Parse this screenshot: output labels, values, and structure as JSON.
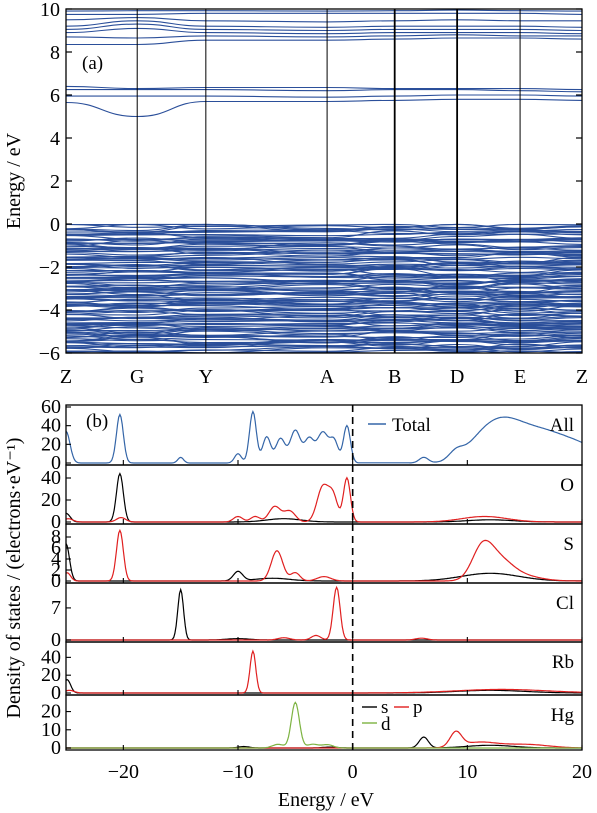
{
  "colors": {
    "band": "#2b4f9a",
    "total": "#3566a8",
    "s": "#000000",
    "p": "#e02020",
    "d": "#7db342",
    "axis": "#000000"
  },
  "chart_data": [
    {
      "type": "line",
      "panel_label": "(a)",
      "ylabel": "Energy / eV",
      "ylim": [
        -6,
        10
      ],
      "y_ticks": [
        "−6",
        "−4",
        "−2",
        "0",
        "2",
        "4",
        "6",
        "8",
        "10"
      ],
      "y_tick_values": [
        -6,
        -4,
        -2,
        0,
        2,
        4,
        6,
        8,
        10
      ],
      "k_path": [
        "Z",
        "G",
        "Y",
        "A",
        "B",
        "D",
        "E",
        "Z"
      ],
      "k_positions": [
        0,
        0.138,
        0.271,
        0.506,
        0.637,
        0.758,
        0.88,
        1.0
      ],
      "bands": {
        "conduction_low": [
          {
            "E": [
              5.65,
              5.0,
              5.7,
              5.7,
              5.75,
              5.8,
              5.8,
              5.75
            ],
            "name": "cb1"
          },
          {
            "E": [
              5.95,
              5.95,
              5.95,
              5.9,
              5.95,
              6.0,
              6.0,
              5.95
            ],
            "name": "cb2"
          },
          {
            "E": [
              6.25,
              6.25,
              6.25,
              6.2,
              6.25,
              6.25,
              6.2,
              6.15
            ],
            "name": "cb3"
          },
          {
            "E": [
              6.4,
              6.3,
              6.35,
              6.35,
              6.3,
              6.3,
              6.3,
              6.25
            ],
            "name": "cb4"
          }
        ],
        "conduction_high": [
          {
            "E": [
              8.35,
              8.35,
              8.55,
              8.55,
              8.6,
              8.65,
              8.65,
              8.6
            ]
          },
          {
            "E": [
              8.7,
              8.65,
              8.75,
              8.7,
              8.75,
              8.8,
              8.75,
              8.75
            ]
          },
          {
            "E": [
              8.9,
              9.1,
              8.9,
              8.85,
              8.9,
              8.9,
              8.9,
              8.85
            ]
          },
          {
            "E": [
              9.05,
              9.3,
              9.05,
              9.0,
              9.05,
              9.05,
              9.05,
              9.0
            ]
          },
          {
            "E": [
              9.2,
              9.45,
              9.2,
              9.15,
              9.2,
              9.2,
              9.2,
              9.15
            ]
          },
          {
            "E": [
              9.5,
              9.6,
              9.45,
              9.4,
              9.45,
              9.5,
              9.45,
              9.45
            ]
          },
          {
            "E": [
              9.75,
              9.75,
              9.8,
              9.8,
              9.8,
              9.8,
              9.8,
              9.75
            ]
          },
          {
            "E": [
              9.9,
              9.92,
              9.92,
              9.9,
              9.92,
              9.95,
              9.92,
              9.9
            ]
          }
        ],
        "valence_range": [
          -6,
          0
        ]
      }
    },
    {
      "type": "line",
      "panel_label": "(b)",
      "xlabel": "Energy / eV",
      "ylabel": "Density of states / (electrons·eV⁻¹)",
      "xlim": [
        -25,
        20
      ],
      "x_ticks": [
        "−20",
        "−10",
        "0",
        "10",
        "20"
      ],
      "x_tick_values": [
        -20,
        -10,
        0,
        10,
        20
      ],
      "fermi_level": 0,
      "legend_total": "Total",
      "legend_orbitals": [
        "s",
        "p",
        "d"
      ],
      "panels": [
        {
          "element": "All",
          "ylim": [
            0,
            60
          ],
          "y_ticks": [
            "0",
            "20",
            "40",
            "60"
          ],
          "y_tick_values": [
            0,
            20,
            40,
            60
          ],
          "series": [
            {
              "name": "Total",
              "color": "total",
              "peaks": [
                [
                  -25,
                  34,
                  0.35
                ],
                [
                  -20.3,
                  52,
                  0.3
                ],
                [
                  -15,
                  6,
                  0.25
                ],
                [
                  -10,
                  10,
                  0.3
                ],
                [
                  -8.7,
                  55,
                  0.3
                ],
                [
                  -7.5,
                  28,
                  0.35
                ],
                [
                  -6.3,
                  26,
                  0.4
                ],
                [
                  -5,
                  35,
                  0.45
                ],
                [
                  -3.8,
                  25,
                  0.4
                ],
                [
                  -2.6,
                  33,
                  0.5
                ],
                [
                  -1.6,
                  22,
                  0.35
                ],
                [
                  -0.5,
                  40,
                  0.3
                ],
                [
                  6.2,
                  6,
                  0.4
                ],
                [
                  9,
                  8,
                  0.6
                ],
                [
                  11.5,
                  25,
                  1.6
                ],
                [
                  13.5,
                  28,
                  1.6
                ],
                [
                  16,
                  20,
                  1.8
                ],
                [
                  19,
                  22,
                  2.5
                ]
              ]
            }
          ]
        },
        {
          "element": "O",
          "ylim": [
            0,
            50
          ],
          "y_ticks": [
            "0",
            "20",
            "40"
          ],
          "y_tick_values": [
            0,
            20,
            40
          ],
          "series": [
            {
              "name": "s",
              "color": "s",
              "peaks": [
                [
                  -25,
                  8,
                  0.35
                ],
                [
                  -20.3,
                  44,
                  0.3
                ],
                [
                  -6,
                  3,
                  1.5
                ],
                [
                  12,
                  2,
                  2
                ]
              ]
            },
            {
              "name": "p",
              "color": "p",
              "peaks": [
                [
                  -24.8,
                  3,
                  0.4
                ],
                [
                  -20.2,
                  4,
                  0.4
                ],
                [
                  -10,
                  5,
                  0.4
                ],
                [
                  -8.5,
                  5,
                  0.4
                ],
                [
                  -6.8,
                  14,
                  0.5
                ],
                [
                  -5.5,
                  10,
                  0.5
                ],
                [
                  -2.6,
                  32,
                  0.5
                ],
                [
                  -1.7,
                  22,
                  0.4
                ],
                [
                  -0.5,
                  40,
                  0.3
                ],
                [
                  11.5,
                  5,
                  2
                ]
              ]
            }
          ]
        },
        {
          "element": "S",
          "ylim": [
            0,
            10
          ],
          "y_ticks": [
            "0",
            "2",
            "4",
            "6",
            "8"
          ],
          "y_tick_values": [
            0,
            2,
            4,
            6,
            8
          ],
          "series": [
            {
              "name": "s",
              "color": "s",
              "peaks": [
                [
                  -25,
                  6.8,
                  0.3
                ],
                [
                  -10,
                  1.7,
                  0.4
                ],
                [
                  -7,
                  0.5,
                  1.5
                ],
                [
                  12,
                  1.4,
                  2.5
                ]
              ]
            },
            {
              "name": "p",
              "color": "p",
              "peaks": [
                [
                  -20.3,
                  9.2,
                  0.3
                ],
                [
                  -24.9,
                  1.5,
                  0.3
                ],
                [
                  -6.6,
                  5.5,
                  0.5
                ],
                [
                  -5,
                  1.5,
                  0.4
                ],
                [
                  -2.5,
                  0.8,
                  0.6
                ],
                [
                  11.3,
                  5.5,
                  0.9
                ],
                [
                  12.8,
                  3.5,
                  1.2
                ],
                [
                  15,
                  0.8,
                  1.5
                ]
              ]
            }
          ]
        },
        {
          "element": "Cl",
          "ylim": [
            0,
            12
          ],
          "y_ticks": [
            "0",
            "7"
          ],
          "y_tick_values": [
            0,
            7
          ],
          "series": [
            {
              "name": "s",
              "color": "s",
              "peaks": [
                [
                  -15,
                  11,
                  0.25
                ],
                [
                  -10,
                  0.3,
                  1
                ]
              ]
            },
            {
              "name": "p",
              "color": "p",
              "peaks": [
                [
                  -1.4,
                  11.5,
                  0.3
                ],
                [
                  -3.2,
                  1,
                  0.4
                ],
                [
                  -6,
                  0.5,
                  0.5
                ],
                [
                  6,
                  0.4,
                  0.5
                ]
              ]
            }
          ]
        },
        {
          "element": "Rb",
          "ylim": [
            0,
            55
          ],
          "y_ticks": [
            "0",
            "20",
            "40"
          ],
          "y_tick_values": [
            0,
            20,
            40
          ],
          "series": [
            {
              "name": "s",
              "color": "s",
              "peaks": [
                [
                  -24.9,
                  15,
                  0.3
                ],
                [
                  12,
                  3,
                  3
                ]
              ]
            },
            {
              "name": "p",
              "color": "p",
              "peaks": [
                [
                  -8.7,
                  47,
                  0.25
                ],
                [
                  -24.7,
                  3,
                  0.4
                ],
                [
                  13,
                  4,
                  4
                ]
              ]
            }
          ]
        },
        {
          "element": "Hg",
          "ylim": [
            0,
            28
          ],
          "y_ticks": [
            "0",
            "10",
            "20"
          ],
          "y_tick_values": [
            0,
            10,
            20
          ],
          "series": [
            {
              "name": "s",
              "color": "s",
              "peaks": [
                [
                  6.2,
                  6,
                  0.4
                ],
                [
                  -9.5,
                  0.8,
                  0.5
                ],
                [
                  -2,
                  0.5,
                  0.6
                ],
                [
                  12,
                  1.5,
                  2
                ]
              ]
            },
            {
              "name": "p",
              "color": "p",
              "peaks": [
                [
                  9,
                  8,
                  0.5
                ],
                [
                  11,
                  3,
                  1.5
                ],
                [
                  15,
                  2,
                  2
                ]
              ]
            },
            {
              "name": "d",
              "color": "d",
              "peaks": [
                [
                  -5,
                  25,
                  0.35
                ],
                [
                  -6.5,
                  2,
                  0.5
                ],
                [
                  -3.5,
                  2,
                  0.5
                ],
                [
                  -2.2,
                  1.8,
                  0.5
                ]
              ]
            }
          ]
        }
      ]
    }
  ]
}
